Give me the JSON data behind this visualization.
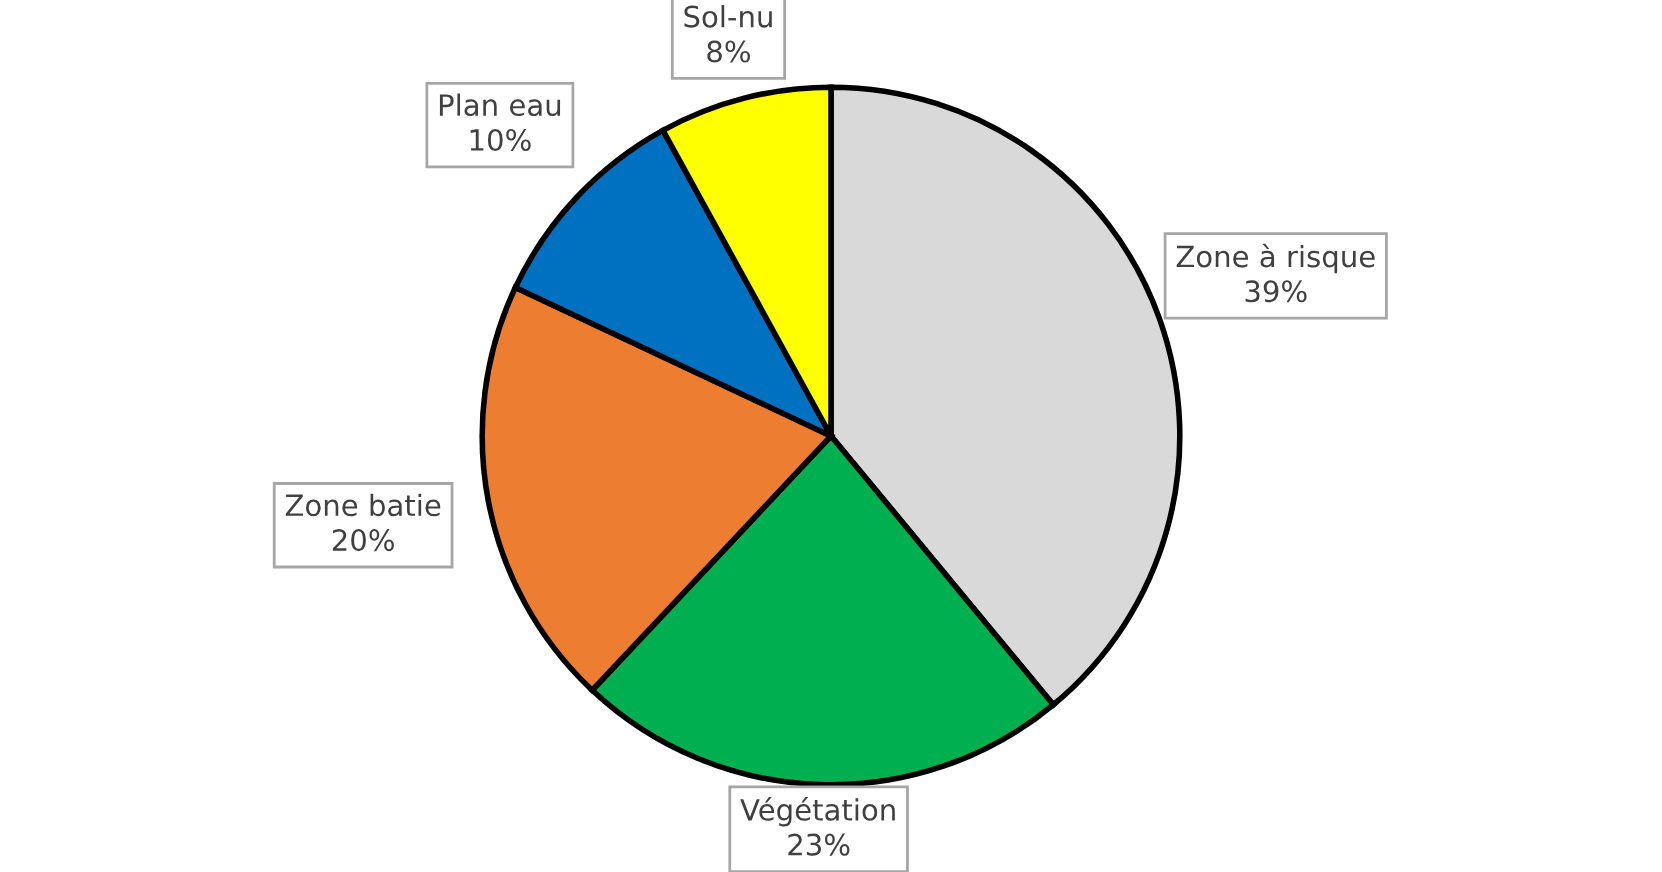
{
  "chart_data": {
    "type": "pie",
    "categories": [
      "Zone à risque",
      "Végétation",
      "Zone batie",
      "Plan eau",
      "Sol-nu"
    ],
    "values": [
      39,
      23,
      20,
      10,
      8
    ],
    "value_labels": [
      "39%",
      "23%",
      "20%",
      "10%",
      "8%"
    ],
    "colors": [
      "#d9d9d9",
      "#00b050",
      "#ed7d31",
      "#0070c0",
      "#ffff00"
    ],
    "legend": false
  }
}
